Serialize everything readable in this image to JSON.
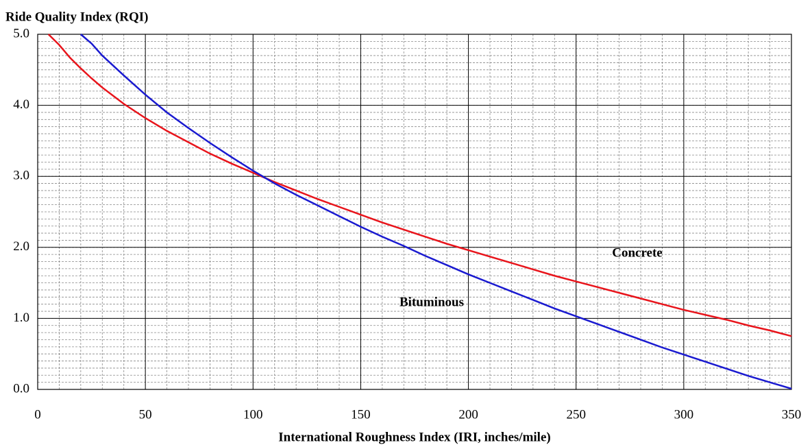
{
  "chart_data": {
    "type": "line",
    "title": "Ride Quality Index (RQI)",
    "xlabel": "International Roughness Index (IRI, inches/mile)",
    "xlim": [
      0,
      350
    ],
    "xticks": [
      0,
      50,
      100,
      150,
      200,
      250,
      300,
      350
    ],
    "ylim": [
      0,
      5
    ],
    "yticks": [
      {
        "value": 0,
        "label": "0.0"
      },
      {
        "value": 1,
        "label": "1.0"
      },
      {
        "value": 2,
        "label": "2.0"
      },
      {
        "value": 3,
        "label": "3.0"
      },
      {
        "value": 4,
        "label": "4.0"
      },
      {
        "value": 5,
        "label": "5.0"
      }
    ],
    "grid": true,
    "xminor_step": 10,
    "yminor_step": 0.1,
    "series": [
      {
        "name": "Concrete",
        "color": "#e8141b",
        "x": [
          5,
          10,
          15,
          20,
          25,
          30,
          40,
          50,
          60,
          70,
          80,
          90,
          100,
          110,
          120,
          130,
          140,
          150,
          160,
          170,
          180,
          190,
          200,
          210,
          220,
          230,
          240,
          250,
          260,
          270,
          280,
          290,
          300,
          310,
          320,
          330,
          340,
          350
        ],
        "values": [
          5.0,
          4.85,
          4.67,
          4.52,
          4.38,
          4.25,
          4.02,
          3.82,
          3.64,
          3.48,
          3.32,
          3.18,
          3.05,
          2.92,
          2.8,
          2.68,
          2.57,
          2.46,
          2.35,
          2.25,
          2.15,
          2.05,
          1.96,
          1.87,
          1.78,
          1.69,
          1.6,
          1.52,
          1.44,
          1.36,
          1.28,
          1.2,
          1.12,
          1.05,
          0.98,
          0.9,
          0.83,
          0.75
        ]
      },
      {
        "name": "Bituminous",
        "color": "#1a1ad0",
        "x": [
          20,
          25,
          30,
          40,
          50,
          60,
          70,
          80,
          90,
          100,
          110,
          120,
          130,
          140,
          150,
          160,
          170,
          180,
          190,
          200,
          210,
          220,
          230,
          240,
          250,
          260,
          270,
          280,
          290,
          300,
          310,
          320,
          330,
          340,
          350
        ],
        "values": [
          5.0,
          4.87,
          4.7,
          4.42,
          4.15,
          3.9,
          3.68,
          3.47,
          3.27,
          3.08,
          2.9,
          2.74,
          2.59,
          2.44,
          2.29,
          2.15,
          2.02,
          1.88,
          1.75,
          1.62,
          1.5,
          1.38,
          1.26,
          1.14,
          1.03,
          0.92,
          0.81,
          0.7,
          0.59,
          0.49,
          0.39,
          0.29,
          0.19,
          0.1,
          0.01
        ]
      }
    ]
  }
}
